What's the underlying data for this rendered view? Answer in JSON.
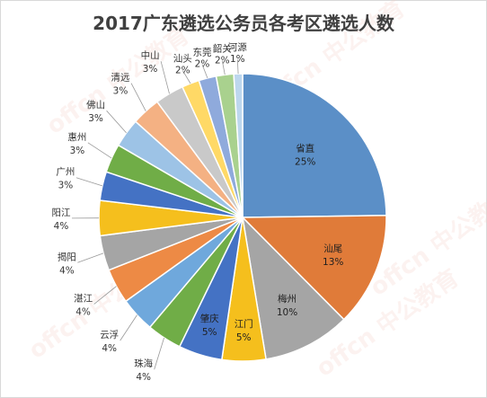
{
  "chart_data": {
    "type": "pie",
    "title": "2017广东遴选公务员各考区遴选人数",
    "slices": [
      {
        "label": "省直",
        "pct": "25%",
        "value": 25.2,
        "color": "#5b8fc7"
      },
      {
        "label": "汕尾",
        "pct": "13%",
        "value": 13,
        "color": "#e07b39"
      },
      {
        "label": "梅州",
        "pct": "10%",
        "value": 10,
        "color": "#a5a5a5"
      },
      {
        "label": "江门",
        "pct": "5%",
        "value": 5,
        "color": "#f5bf1d"
      },
      {
        "label": "肇庆",
        "pct": "5%",
        "value": 5,
        "color": "#4472c4"
      },
      {
        "label": "珠海",
        "pct": "4%",
        "value": 4,
        "color": "#70ad47"
      },
      {
        "label": "云浮",
        "pct": "4%",
        "value": 4,
        "color": "#6fa8dc"
      },
      {
        "label": "湛江",
        "pct": "4%",
        "value": 4,
        "color": "#ed8a45"
      },
      {
        "label": "揭阳",
        "pct": "4%",
        "value": 4,
        "color": "#a5a5a5"
      },
      {
        "label": "阳江",
        "pct": "4%",
        "value": 4,
        "color": "#f5bf1d"
      },
      {
        "label": "广州",
        "pct": "3%",
        "value": 3.3,
        "color": "#4472c4"
      },
      {
        "label": "惠州",
        "pct": "3%",
        "value": 3.3,
        "color": "#70ad47"
      },
      {
        "label": "佛山",
        "pct": "3%",
        "value": 3.3,
        "color": "#9dc3e6"
      },
      {
        "label": "清远",
        "pct": "3%",
        "value": 3.3,
        "color": "#f4b183"
      },
      {
        "label": "中山",
        "pct": "3%",
        "value": 3.3,
        "color": "#c9c9c9"
      },
      {
        "label": "汕头",
        "pct": "2%",
        "value": 2,
        "color": "#ffd966"
      },
      {
        "label": "东莞",
        "pct": "2%",
        "value": 2,
        "color": "#8faadc"
      },
      {
        "label": "韶关",
        "pct": "2%",
        "value": 2,
        "color": "#a9d18e"
      },
      {
        "label": "河源",
        "pct": "1%",
        "value": 1,
        "color": "#bdd7ee"
      }
    ]
  },
  "watermark": "offcn 中公教育"
}
